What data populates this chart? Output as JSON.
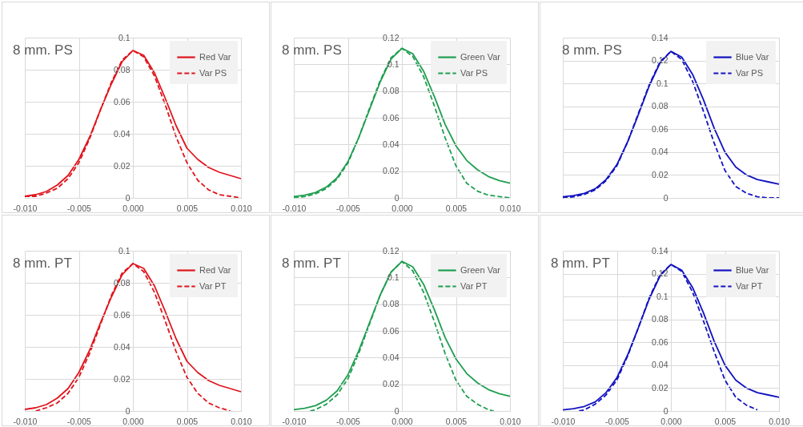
{
  "chart_data": [
    {
      "type": "line",
      "title": "8 mm. PS",
      "x": [
        -0.01,
        -0.009,
        -0.008,
        -0.007,
        -0.006,
        -0.005,
        -0.004,
        -0.003,
        -0.002,
        -0.001,
        0,
        0.001,
        0.002,
        0.003,
        0.004,
        0.005,
        0.006,
        0.007,
        0.008,
        0.009,
        0.01
      ],
      "xlim": [
        -0.01,
        0.01
      ],
      "xticks": [
        {
          "value": -0.01,
          "label": "-0.010"
        },
        {
          "value": -0.005,
          "label": "-0.005"
        },
        {
          "value": 0,
          "label": "0.000"
        },
        {
          "value": 0.005,
          "label": "0.005"
        },
        {
          "value": 0.01,
          "label": "0.010"
        }
      ],
      "ylim": [
        0,
        0.1
      ],
      "yticks": [
        0,
        0.02,
        0.04,
        0.06,
        0.08,
        0.1
      ],
      "grid": true,
      "legend": "top right",
      "series": [
        {
          "name": "Red Var",
          "color": "#e0141c",
          "line_style": "solid",
          "values": [
            0.001,
            0.002,
            0.004,
            0.008,
            0.014,
            0.024,
            0.038,
            0.055,
            0.071,
            0.085,
            0.092,
            0.089,
            0.078,
            0.062,
            0.045,
            0.031,
            0.024,
            0.019,
            0.016,
            0.014,
            0.012
          ]
        },
        {
          "name": "Var PS",
          "color": "#e0141c",
          "line_style": "dashed",
          "values": [
            0.001,
            0.001,
            0.003,
            0.006,
            0.012,
            0.022,
            0.037,
            0.055,
            0.072,
            0.086,
            0.092,
            0.088,
            0.076,
            0.058,
            0.038,
            0.022,
            0.011,
            0.005,
            0.002,
            0.001,
            0
          ]
        }
      ]
    },
    {
      "type": "line",
      "title": "8 mm. PS",
      "x": [
        -0.01,
        -0.009,
        -0.008,
        -0.007,
        -0.006,
        -0.005,
        -0.004,
        -0.003,
        -0.002,
        -0.001,
        0,
        0.001,
        0.002,
        0.003,
        0.004,
        0.005,
        0.006,
        0.007,
        0.008,
        0.009,
        0.01
      ],
      "xlim": [
        -0.01,
        0.01
      ],
      "xticks": [
        {
          "value": -0.01,
          "label": "-0.010"
        },
        {
          "value": -0.005,
          "label": "-0.005"
        },
        {
          "value": 0,
          "label": "0.000"
        },
        {
          "value": 0.005,
          "label": "0.005"
        },
        {
          "value": 0.01,
          "label": "0.010"
        }
      ],
      "ylim": [
        0,
        0.12
      ],
      "yticks": [
        0,
        0.02,
        0.04,
        0.06,
        0.08,
        0.1,
        0.12
      ],
      "grid": true,
      "legend": "top right",
      "series": [
        {
          "name": "Green Var",
          "color": "#1f9e50",
          "line_style": "solid",
          "values": [
            0.001,
            0.002,
            0.004,
            0.008,
            0.015,
            0.027,
            0.045,
            0.066,
            0.087,
            0.104,
            0.112,
            0.108,
            0.095,
            0.076,
            0.055,
            0.039,
            0.028,
            0.021,
            0.016,
            0.013,
            0.011
          ]
        },
        {
          "name": "Var PS",
          "color": "#1f9e50",
          "line_style": "dashed",
          "values": [
            0,
            0.001,
            0.003,
            0.007,
            0.014,
            0.026,
            0.045,
            0.067,
            0.088,
            0.105,
            0.112,
            0.106,
            0.091,
            0.069,
            0.045,
            0.024,
            0.011,
            0.005,
            0.002,
            0.001,
            0
          ]
        }
      ]
    },
    {
      "type": "line",
      "title": "8 mm. PS",
      "x": [
        -0.01,
        -0.009,
        -0.008,
        -0.007,
        -0.006,
        -0.005,
        -0.004,
        -0.003,
        -0.002,
        -0.001,
        0,
        0.001,
        0.002,
        0.003,
        0.004,
        0.005,
        0.006,
        0.007,
        0.008,
        0.009,
        0.01
      ],
      "xlim": [
        -0.01,
        0.01
      ],
      "ylim": [
        0,
        0.14
      ],
      "yticks": [
        0,
        0.02,
        0.04,
        0.06,
        0.08,
        0.1,
        0.12,
        0.14
      ],
      "grid": true,
      "legend": "top right",
      "tick_labels": "y",
      "series": [
        {
          "name": "Blue Var",
          "color": "#1212c0",
          "line_style": "solid",
          "values": [
            0.001,
            0.002,
            0.004,
            0.008,
            0.016,
            0.029,
            0.049,
            0.073,
            0.098,
            0.118,
            0.128,
            0.123,
            0.108,
            0.086,
            0.061,
            0.04,
            0.027,
            0.02,
            0.016,
            0.014,
            0.012
          ]
        },
        {
          "name": "Var PS",
          "color": "#1212c0",
          "line_style": "dashed",
          "values": [
            0,
            0.001,
            0.003,
            0.007,
            0.015,
            0.028,
            0.049,
            0.074,
            0.099,
            0.119,
            0.128,
            0.121,
            0.102,
            0.076,
            0.048,
            0.024,
            0.01,
            0.004,
            0.001,
            0,
            0
          ]
        }
      ]
    },
    {
      "type": "line",
      "title": "8 mm. PT",
      "x": [
        -0.01,
        -0.009,
        -0.008,
        -0.007,
        -0.006,
        -0.005,
        -0.004,
        -0.003,
        -0.002,
        -0.001,
        0,
        0.001,
        0.002,
        0.003,
        0.004,
        0.005,
        0.006,
        0.007,
        0.008,
        0.009,
        0.01
      ],
      "xlim": [
        -0.01,
        0.01
      ],
      "xticks": [
        {
          "value": -0.01,
          "label": "-0.010"
        },
        {
          "value": -0.005,
          "label": "-0.005"
        },
        {
          "value": 0,
          "label": "0.000"
        },
        {
          "value": 0.005,
          "label": "0.005"
        },
        {
          "value": 0.01,
          "label": "0.010"
        }
      ],
      "ylim": [
        0,
        0.1
      ],
      "yticks": [
        0,
        0.02,
        0.04,
        0.06,
        0.08,
        0.1
      ],
      "grid": true,
      "legend": "top right",
      "series": [
        {
          "name": "Red Var",
          "color": "#e0141c",
          "line_style": "solid",
          "values": [
            0.001,
            0.002,
            0.004,
            0.008,
            0.014,
            0.024,
            0.038,
            0.055,
            0.071,
            0.085,
            0.092,
            0.089,
            0.078,
            0.062,
            0.045,
            0.031,
            0.024,
            0.019,
            0.016,
            0.014,
            0.012
          ]
        },
        {
          "name": "Var PT",
          "color": "#e0141c",
          "line_style": "dashed",
          "x": [
            -0.009,
            -0.008,
            -0.007,
            -0.006,
            -0.005,
            -0.004,
            -0.003,
            -0.002,
            -0.001,
            0,
            0.001,
            0.002,
            0.003,
            0.004,
            0.005,
            0.006,
            0.007,
            0.008,
            0.009
          ],
          "values": [
            0,
            0.002,
            0.005,
            0.011,
            0.021,
            0.036,
            0.054,
            0.072,
            0.086,
            0.092,
            0.087,
            0.074,
            0.056,
            0.037,
            0.021,
            0.011,
            0.005,
            0.002,
            0
          ]
        }
      ]
    },
    {
      "type": "line",
      "title": "8 mm. PT",
      "x": [
        -0.01,
        -0.009,
        -0.008,
        -0.007,
        -0.006,
        -0.005,
        -0.004,
        -0.003,
        -0.002,
        -0.001,
        0,
        0.001,
        0.002,
        0.003,
        0.004,
        0.005,
        0.006,
        0.007,
        0.008,
        0.009,
        0.01
      ],
      "xlim": [
        -0.01,
        0.01
      ],
      "xticks": [
        {
          "value": -0.01,
          "label": "-0.010"
        },
        {
          "value": -0.005,
          "label": "-0.005"
        },
        {
          "value": 0,
          "label": "0.000"
        },
        {
          "value": 0.005,
          "label": "0.005"
        },
        {
          "value": 0.01,
          "label": "0.010"
        }
      ],
      "ylim": [
        0,
        0.12
      ],
      "yticks": [
        0,
        0.02,
        0.04,
        0.06,
        0.08,
        0.1,
        0.12
      ],
      "grid": true,
      "legend": "top right",
      "series": [
        {
          "name": "Green Var",
          "color": "#1f9e50",
          "line_style": "solid",
          "values": [
            0.001,
            0.002,
            0.004,
            0.008,
            0.015,
            0.027,
            0.045,
            0.066,
            0.087,
            0.104,
            0.112,
            0.108,
            0.095,
            0.076,
            0.055,
            0.039,
            0.028,
            0.021,
            0.016,
            0.013,
            0.011
          ]
        },
        {
          "name": "Var PT",
          "color": "#1f9e50",
          "line_style": "dashed",
          "x": [
            -0.0085,
            -0.008,
            -0.007,
            -0.006,
            -0.005,
            -0.004,
            -0.003,
            -0.002,
            -0.001,
            0,
            0.001,
            0.002,
            0.003,
            0.004,
            0.005,
            0.006,
            0.007,
            0.008,
            0.0085
          ],
          "values": [
            0,
            0.001,
            0.005,
            0.012,
            0.024,
            0.043,
            0.065,
            0.087,
            0.104,
            0.112,
            0.105,
            0.089,
            0.067,
            0.043,
            0.023,
            0.011,
            0.005,
            0.001,
            0
          ]
        }
      ]
    },
    {
      "type": "line",
      "title": "8 mm. PT",
      "x": [
        -0.01,
        -0.009,
        -0.008,
        -0.007,
        -0.006,
        -0.005,
        -0.004,
        -0.003,
        -0.002,
        -0.001,
        0,
        0.001,
        0.002,
        0.003,
        0.004,
        0.005,
        0.006,
        0.007,
        0.008,
        0.009,
        0.01
      ],
      "xlim": [
        -0.01,
        0.01
      ],
      "xticks": [
        {
          "value": -0.01,
          "label": "-0.010"
        },
        {
          "value": -0.005,
          "label": "-0.005"
        },
        {
          "value": 0,
          "label": "0.000"
        },
        {
          "value": 0.005,
          "label": "0.005"
        },
        {
          "value": 0.01,
          "label": "0.010"
        }
      ],
      "ylim": [
        0,
        0.14
      ],
      "yticks": [
        0,
        0.02,
        0.04,
        0.06,
        0.08,
        0.1,
        0.12,
        0.14
      ],
      "grid": true,
      "legend": "top right",
      "series": [
        {
          "name": "Blue Var",
          "color": "#1212c0",
          "line_style": "solid",
          "values": [
            0.001,
            0.002,
            0.004,
            0.008,
            0.016,
            0.029,
            0.049,
            0.073,
            0.098,
            0.118,
            0.128,
            0.123,
            0.108,
            0.086,
            0.061,
            0.04,
            0.027,
            0.02,
            0.016,
            0.014,
            0.012
          ]
        },
        {
          "name": "Var PT",
          "color": "#1212c0",
          "line_style": "dashed",
          "x": [
            -0.0085,
            -0.008,
            -0.007,
            -0.006,
            -0.005,
            -0.004,
            -0.003,
            -0.002,
            -0.001,
            0,
            0.001,
            0.002,
            0.003,
            0.004,
            0.005,
            0.006,
            0.007,
            0.008
          ],
          "values": [
            0,
            0.001,
            0.006,
            0.014,
            0.027,
            0.048,
            0.073,
            0.099,
            0.119,
            0.128,
            0.122,
            0.104,
            0.079,
            0.052,
            0.027,
            0.012,
            0.005,
            0.001
          ]
        }
      ]
    }
  ]
}
